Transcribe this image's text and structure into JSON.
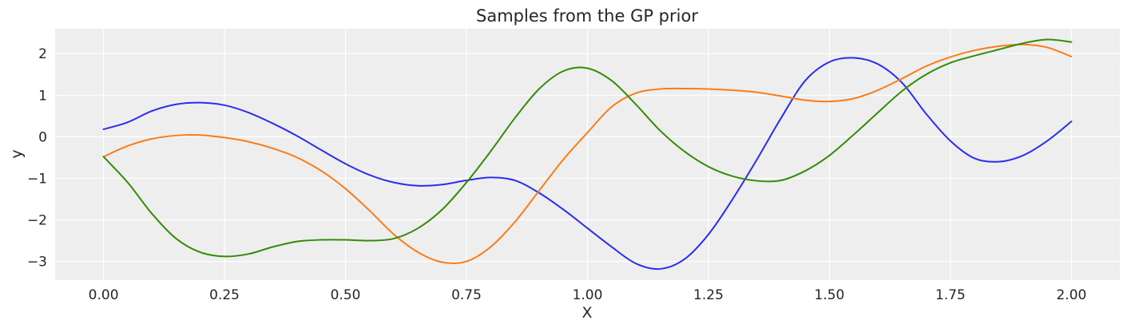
{
  "chart_data": {
    "type": "line",
    "title": "Samples from the GP prior",
    "xlabel": "X",
    "ylabel": "y",
    "xlim": [
      -0.1,
      2.1
    ],
    "ylim": [
      -3.45,
      2.6
    ],
    "xticks": [
      0.0,
      0.25,
      0.5,
      0.75,
      1.0,
      1.25,
      1.5,
      1.75,
      2.0
    ],
    "xtick_labels": [
      "0.00",
      "0.25",
      "0.50",
      "0.75",
      "1.00",
      "1.25",
      "1.50",
      "1.75",
      "2.00"
    ],
    "yticks": [
      -3,
      -2,
      -1,
      0,
      1,
      2
    ],
    "ytick_labels": [
      "−3",
      "−2",
      "−1",
      "0",
      "1",
      "2"
    ],
    "grid": true,
    "background": "#eeeeee",
    "series": [
      {
        "color": "#2a2eec",
        "x": [
          0.0,
          0.05,
          0.1,
          0.15,
          0.2,
          0.25,
          0.3,
          0.35,
          0.4,
          0.45,
          0.5,
          0.55,
          0.6,
          0.65,
          0.7,
          0.75,
          0.8,
          0.85,
          0.9,
          0.95,
          1.0,
          1.05,
          1.1,
          1.15,
          1.2,
          1.25,
          1.3,
          1.35,
          1.4,
          1.45,
          1.5,
          1.55,
          1.6,
          1.65,
          1.7,
          1.75,
          1.8,
          1.85,
          1.9,
          1.95,
          2.0
        ],
        "y": [
          0.18,
          0.35,
          0.62,
          0.78,
          0.82,
          0.76,
          0.58,
          0.32,
          0.02,
          -0.32,
          -0.65,
          -0.92,
          -1.1,
          -1.18,
          -1.15,
          -1.05,
          -0.98,
          -1.05,
          -1.35,
          -1.75,
          -2.2,
          -2.65,
          -3.05,
          -3.18,
          -2.95,
          -2.35,
          -1.5,
          -0.55,
          0.45,
          1.35,
          1.8,
          1.9,
          1.75,
          1.3,
          0.55,
          -0.1,
          -0.52,
          -0.6,
          -0.45,
          -0.1,
          0.37
        ]
      },
      {
        "color": "#fa7c17",
        "x": [
          0.0,
          0.05,
          0.1,
          0.15,
          0.2,
          0.25,
          0.3,
          0.35,
          0.4,
          0.45,
          0.5,
          0.55,
          0.6,
          0.65,
          0.7,
          0.75,
          0.8,
          0.85,
          0.9,
          0.95,
          1.0,
          1.05,
          1.1,
          1.15,
          1.2,
          1.25,
          1.3,
          1.35,
          1.4,
          1.45,
          1.5,
          1.55,
          1.6,
          1.65,
          1.7,
          1.75,
          1.8,
          1.85,
          1.9,
          1.95,
          2.0
        ],
        "y": [
          -0.48,
          -0.22,
          -0.05,
          0.03,
          0.04,
          -0.02,
          -0.12,
          -0.28,
          -0.5,
          -0.82,
          -1.25,
          -1.78,
          -2.35,
          -2.78,
          -3.02,
          -3.0,
          -2.65,
          -2.05,
          -1.3,
          -0.55,
          0.1,
          0.72,
          1.05,
          1.15,
          1.16,
          1.15,
          1.12,
          1.07,
          0.98,
          0.88,
          0.85,
          0.92,
          1.12,
          1.4,
          1.7,
          1.92,
          2.08,
          2.18,
          2.22,
          2.15,
          1.93
        ]
      },
      {
        "color": "#328c06",
        "x": [
          0.0,
          0.05,
          0.1,
          0.15,
          0.2,
          0.25,
          0.3,
          0.35,
          0.4,
          0.45,
          0.5,
          0.55,
          0.6,
          0.65,
          0.7,
          0.75,
          0.8,
          0.85,
          0.9,
          0.95,
          1.0,
          1.05,
          1.1,
          1.15,
          1.2,
          1.25,
          1.3,
          1.35,
          1.4,
          1.45,
          1.5,
          1.55,
          1.6,
          1.65,
          1.7,
          1.75,
          1.8,
          1.85,
          1.9,
          1.95,
          2.0
        ],
        "y": [
          -0.48,
          -1.1,
          -1.85,
          -2.45,
          -2.78,
          -2.88,
          -2.82,
          -2.65,
          -2.52,
          -2.48,
          -2.48,
          -2.5,
          -2.45,
          -2.2,
          -1.75,
          -1.1,
          -0.35,
          0.45,
          1.15,
          1.58,
          1.65,
          1.35,
          0.78,
          0.15,
          -0.35,
          -0.72,
          -0.95,
          -1.06,
          -1.05,
          -0.82,
          -0.45,
          0.05,
          0.58,
          1.1,
          1.5,
          1.78,
          1.95,
          2.1,
          2.25,
          2.34,
          2.28
        ]
      }
    ]
  }
}
